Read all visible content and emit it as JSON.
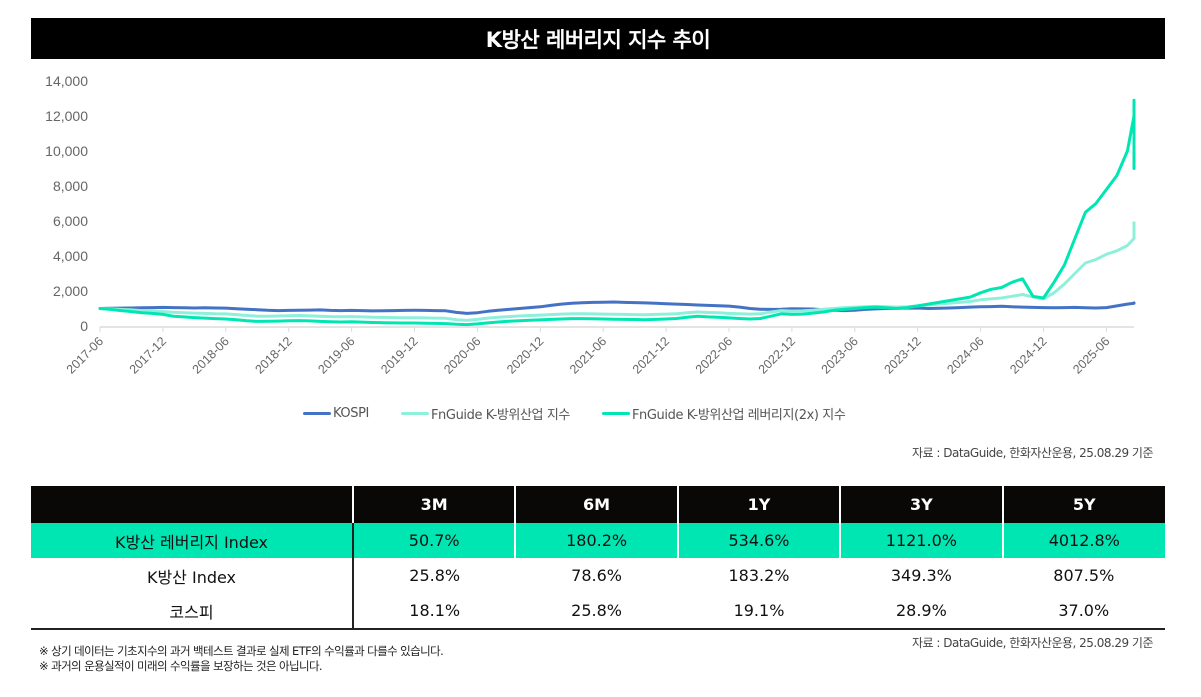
{
  "title": "K방산 레버리지 지수 추이",
  "chart_data": {
    "type": "line",
    "title": "K방산 레버리지 지수 추이",
    "xlabel": "",
    "ylabel": "",
    "ylim": [
      0,
      14000
    ],
    "yticks": [
      0,
      2000,
      4000,
      6000,
      8000,
      10000,
      12000,
      14000
    ],
    "ytick_labels": [
      "0",
      "2,000",
      "4,000",
      "6,000",
      "8,000",
      "10,000",
      "12,000",
      "14,000"
    ],
    "xtick_labels": [
      "2017-06",
      "2017-12",
      "2018-06",
      "2018-12",
      "2019-06",
      "2019-12",
      "2020-06",
      "2020-12",
      "2021-06",
      "2021-12",
      "2022-06",
      "2022-12",
      "2023-06",
      "2023-12",
      "2024-06",
      "2024-12",
      "2025-06"
    ],
    "x_start": "2017-06",
    "x_end": "2025-08",
    "legend_position": "bottom",
    "grid": false,
    "series": [
      {
        "name": "KOSPI",
        "color": "#4472c4",
        "values": [
          1000,
          1010,
          1020,
          1030,
          1040,
          1050,
          1060,
          1050,
          1040,
          1030,
          1040,
          1030,
          1020,
          990,
          960,
          930,
          900,
          880,
          890,
          900,
          910,
          920,
          890,
          880,
          890,
          880,
          860,
          870,
          880,
          890,
          900,
          890,
          880,
          870,
          780,
          720,
          760,
          840,
          900,
          950,
          1000,
          1050,
          1100,
          1180,
          1250,
          1300,
          1330,
          1350,
          1360,
          1370,
          1350,
          1340,
          1320,
          1300,
          1270,
          1250,
          1230,
          1200,
          1180,
          1160,
          1140,
          1080,
          1000,
          960,
          950,
          960,
          990,
          980,
          970,
          930,
          900,
          880,
          900,
          950,
          980,
          1000,
          1010,
          1020,
          1030,
          1000,
          1010,
          1030,
          1050,
          1080,
          1100,
          1110,
          1130,
          1100,
          1080,
          1060,
          1050,
          1040,
          1050,
          1060,
          1040,
          1030,
          1050,
          1150,
          1250,
          1300,
          1320
        ]
      },
      {
        "name": "FnGuide K-방위산업 지수",
        "color": "#8ef0da",
        "values": [
          1000,
          980,
          950,
          920,
          880,
          860,
          830,
          780,
          760,
          740,
          720,
          700,
          690,
          650,
          600,
          560,
          560,
          570,
          590,
          600,
          580,
          560,
          540,
          530,
          540,
          520,
          500,
          490,
          480,
          470,
          470,
          460,
          450,
          440,
          360,
          320,
          380,
          450,
          500,
          540,
          570,
          600,
          620,
          650,
          680,
          700,
          700,
          690,
          680,
          670,
          660,
          650,
          640,
          660,
          680,
          700,
          760,
          800,
          770,
          760,
          720,
          700,
          680,
          700,
          800,
          880,
          850,
          860,
          900,
          960,
          1000,
          1050,
          1080,
          1100,
          1120,
          1100,
          1080,
          1100,
          1150,
          1200,
          1250,
          1300,
          1350,
          1400,
          1500,
          1550,
          1600,
          1700,
          1800,
          1650,
          1550,
          1900,
          2400,
          3000,
          3600,
          3800,
          4100,
          4300,
          4600,
          5000,
          5200,
          5500,
          5900,
          5400
        ]
      },
      {
        "name": "FnGuide K-방위산업 레버리지(2x) 지수",
        "color": "#00e6b3",
        "values": [
          1000,
          950,
          880,
          820,
          760,
          720,
          660,
          560,
          520,
          480,
          450,
          420,
          400,
          360,
          300,
          260,
          270,
          280,
          300,
          310,
          290,
          260,
          240,
          230,
          240,
          220,
          200,
          190,
          180,
          170,
          170,
          160,
          150,
          140,
          100,
          80,
          120,
          180,
          230,
          270,
          300,
          330,
          350,
          380,
          400,
          420,
          420,
          410,
          400,
          390,
          380,
          370,
          360,
          380,
          400,
          430,
          500,
          560,
          520,
          500,
          460,
          430,
          400,
          430,
          560,
          700,
          660,
          680,
          740,
          800,
          900,
          950,
          1000,
          1050,
          1080,
          1040,
          1000,
          1050,
          1150,
          1250,
          1350,
          1450,
          1550,
          1650,
          1900,
          2100,
          2200,
          2500,
          2700,
          1700,
          1600,
          2500,
          3500,
          5000,
          6500,
          7000,
          7800,
          8600,
          10000,
          12000,
          9000,
          11500,
          12900,
          10800
        ]
      }
    ]
  },
  "legend": {
    "items": [
      {
        "label": "KOSPI",
        "color": "#4472c4"
      },
      {
        "label": "FnGuide K-방위산업 지수",
        "color": "#8ef0da"
      },
      {
        "label": "FnGuide K-방위산업 레버리지(2x) 지수",
        "color": "#00e6b3"
      }
    ]
  },
  "chart_source": "자료 : DataGuide, 한화자산운용, 25.08.29 기준",
  "table": {
    "headers": [
      "",
      "3M",
      "6M",
      "1Y",
      "3Y",
      "5Y"
    ],
    "highlight_color": "#00e6b3",
    "rows": [
      {
        "name": "K방산 레버리지 Index",
        "values": [
          "50.7%",
          "180.2%",
          "534.6%",
          "1121.0%",
          "4012.8%"
        ]
      },
      {
        "name": "K방산 Index",
        "values": [
          "25.8%",
          "78.6%",
          "183.2%",
          "349.3%",
          "807.5%"
        ]
      },
      {
        "name": "코스피",
        "values": [
          "18.1%",
          "25.8%",
          "19.1%",
          "28.9%",
          "37.0%"
        ]
      }
    ]
  },
  "table_source": "자료 : DataGuide, 한화자산운용, 25.08.29 기준",
  "notes": [
    "※ 상기 데이터는 기초지수의 과거 백테스트 결과로 실제 ETF의 수익률과 다를수 있습니다.",
    "※ 과거의 운용실적이 미래의 수익률을 보장하는 것은 아닙니다."
  ]
}
